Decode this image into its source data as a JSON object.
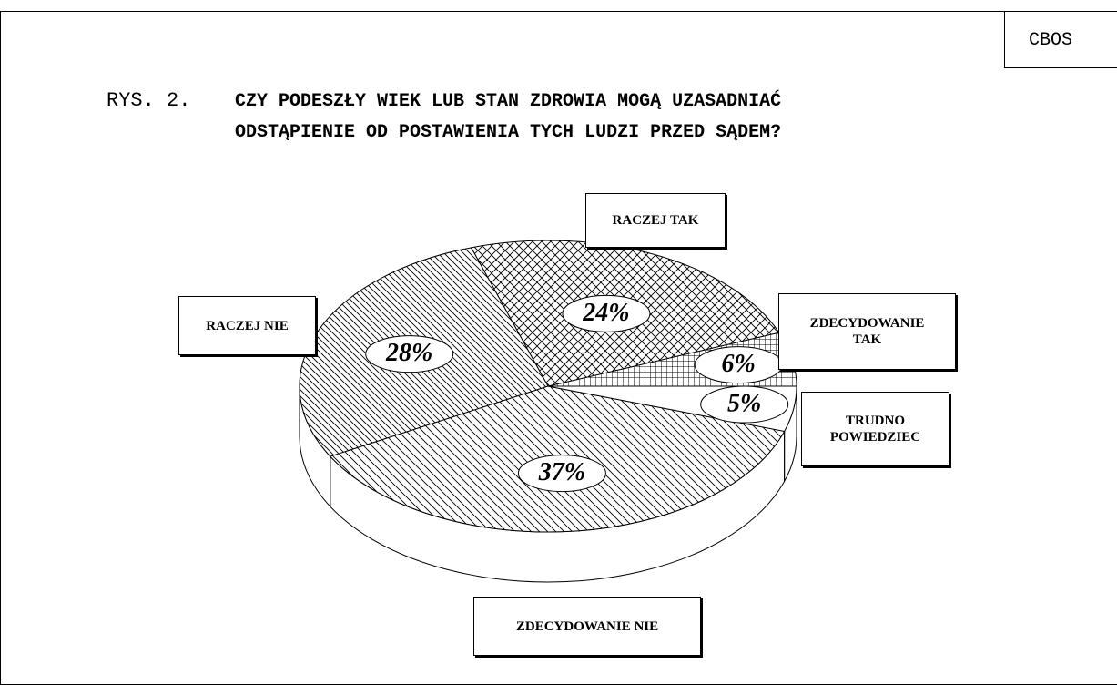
{
  "chart_data": {
    "type": "pie",
    "source": "CBOS",
    "title_prefix": "RYS. 2.",
    "title_lines": [
      "CZY PODESZŁY WIEK LUB STAN ZDROWIA MOGĄ UZASADNIAĆ",
      "ODSTĄPIENIE OD POSTAWIENIA TYCH LUDZI PRZED SĄDEM?"
    ],
    "categories": [
      "ZDECYDOWANIE TAK",
      "RACZEJ TAK",
      "RACZEJ NIE",
      "ZDECYDOWANIE NIE",
      "TRUDNO POWIEDZIEC"
    ],
    "values": [
      6,
      24,
      28,
      37,
      5
    ],
    "value_labels": [
      "6%",
      "24%",
      "28%",
      "37%",
      "5%"
    ]
  }
}
